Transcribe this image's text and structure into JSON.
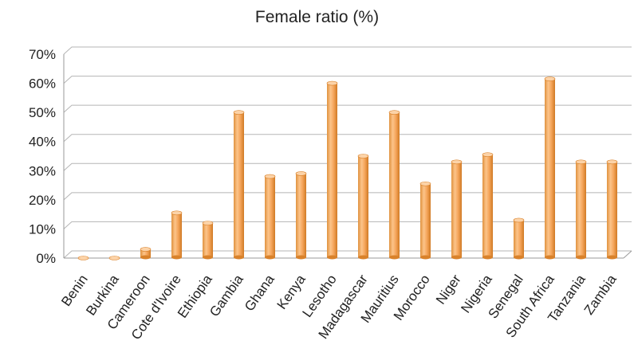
{
  "chart_data": {
    "type": "bar",
    "title": "Female ratio (%)",
    "xlabel": "",
    "ylabel": "",
    "categories": [
      "Benin",
      "Burkina",
      "Cameroon",
      "Cote d'Ivoire",
      "Ethiopia",
      "Gambia",
      "Ghana",
      "Kenya",
      "Lesotho",
      "Madagascar",
      "Mauritius",
      "Morocco",
      "Niger",
      "Nigeria",
      "Senegal",
      "South Africa",
      "Tanzania",
      "Zambia"
    ],
    "values": [
      0,
      0,
      3,
      15.5,
      12,
      50,
      28,
      29,
      60,
      35,
      50,
      25.5,
      33,
      35.5,
      13,
      61.5,
      33,
      33
    ],
    "ylim": [
      0,
      70
    ],
    "yticks": [
      "0%",
      "10%",
      "20%",
      "30%",
      "40%",
      "50%",
      "60%",
      "70%"
    ],
    "grid": true,
    "bar_style": "3d-cylinder",
    "colors": {
      "bar": "#F4A460",
      "bar_dark": "#D9822B",
      "bar_light": "#FCD3A8",
      "grid": "#b5b5b5",
      "floor": "#9a9a9a"
    }
  }
}
